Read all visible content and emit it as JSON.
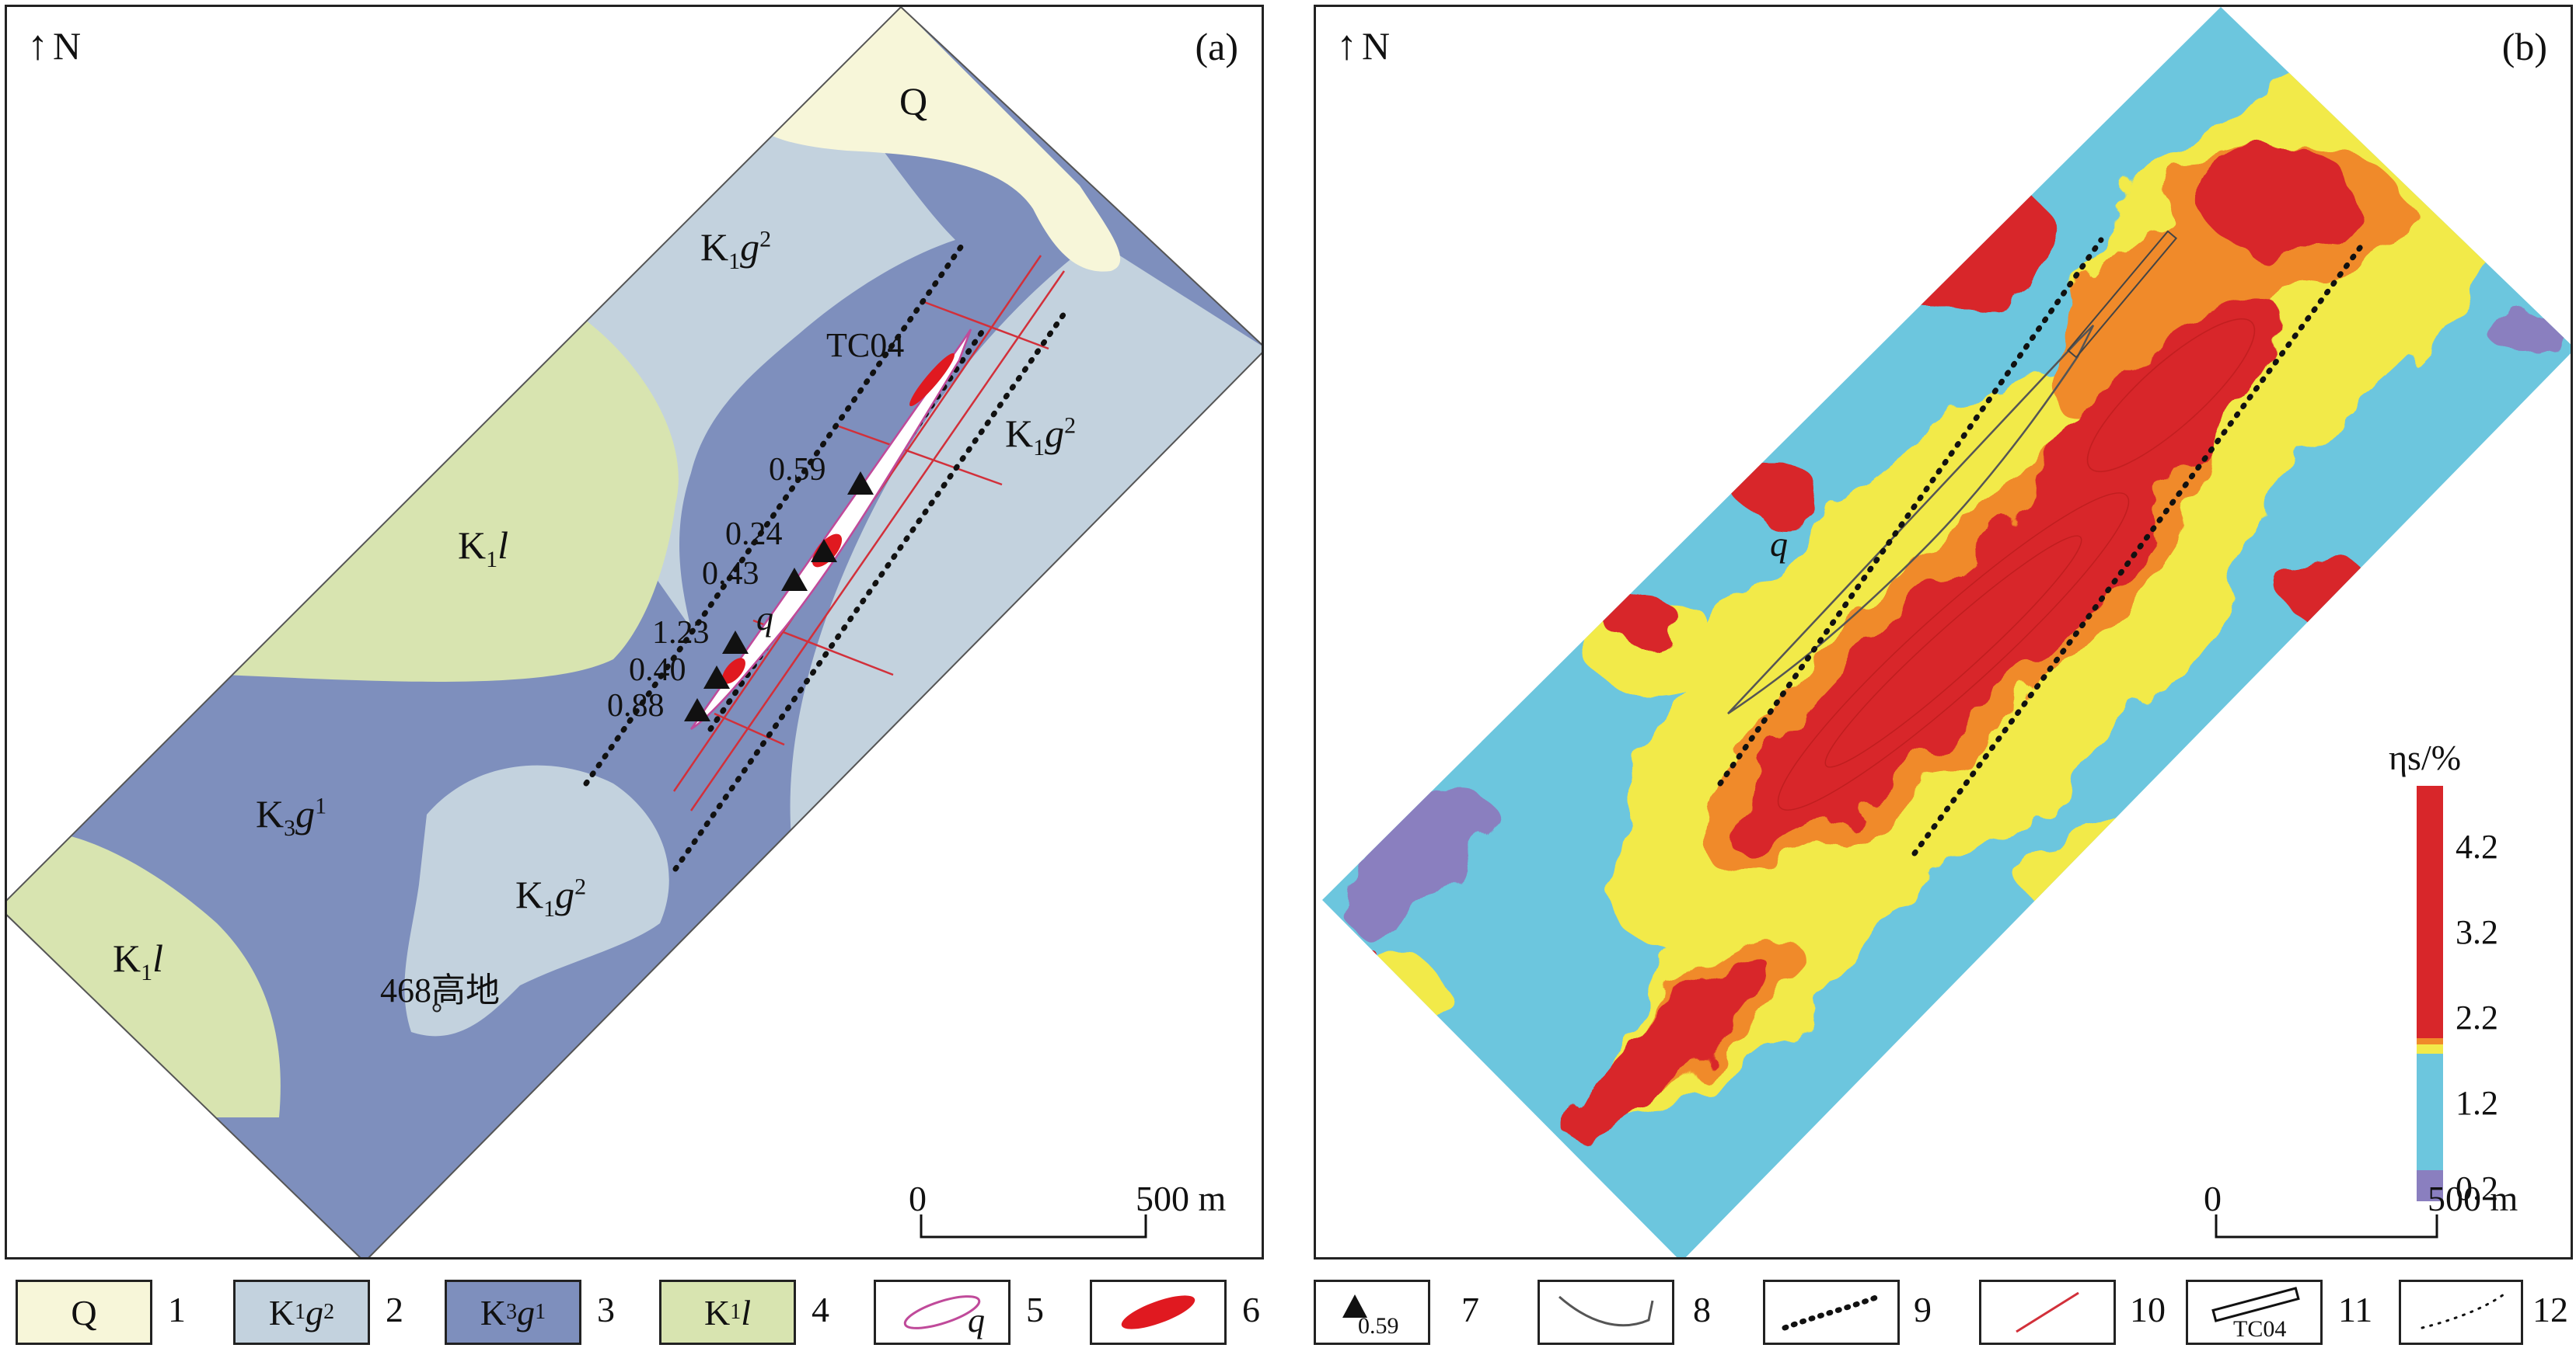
{
  "panel_a": {
    "label": "(a)",
    "north": "N",
    "units": {
      "Q": "Q",
      "K1g2_top": {
        "base": "K",
        "sub": "1",
        "it": "g",
        "sup": "2"
      },
      "K1g2_right": {
        "base": "K",
        "sub": "1",
        "it": "g",
        "sup": "2"
      },
      "K1g2_bottom": {
        "base": "K",
        "sub": "1",
        "it": "g",
        "sup": "2"
      },
      "K1l_center": {
        "base": "K",
        "sub": "1",
        "it": "l"
      },
      "K1l_left": {
        "base": "K",
        "sub": "1",
        "it": "l"
      },
      "K3g1": {
        "base": "K",
        "sub": "3",
        "it": "g",
        "sup": "1"
      }
    },
    "trench": "TC04",
    "q_label": "q",
    "place": "468高地",
    "samples": [
      "0.59",
      "0.24",
      "0.43",
      "1.23",
      "0.40",
      "0.88"
    ],
    "scale": {
      "zero": "0",
      "end": "500 m"
    },
    "colors": {
      "Q": "#f7f6d9",
      "K1g2": "#c3d2de",
      "K3g1": "#7e8fbd",
      "K1l": "#d8e4b0"
    }
  },
  "panel_b": {
    "label": "(b)",
    "north": "N",
    "q_label": "q",
    "colorbar_title": "ηs/%",
    "colorbar_ticks": [
      "4.2",
      "3.2",
      "2.2",
      "1.2",
      "0.2"
    ],
    "scale": {
      "zero": "0",
      "end": "500 m"
    },
    "colors": {
      "high": "#d8262a",
      "mid": "#f08a2a",
      "moderate": "#f2ea4a",
      "low": "#6cc6de",
      "lowest": "#8a7fbf"
    }
  },
  "legend": [
    {
      "num": "1",
      "text": "Q"
    },
    {
      "num": "2",
      "base": "K",
      "sub": "1",
      "it": "g",
      "sup": "2"
    },
    {
      "num": "3",
      "base": "K",
      "sub": "3",
      "it": "g",
      "sup": "1"
    },
    {
      "num": "4",
      "base": "K",
      "sub": "1",
      "it": "l"
    },
    {
      "num": "5",
      "it": "q"
    },
    {
      "num": "6"
    },
    {
      "num": "7",
      "text": "0.59"
    },
    {
      "num": "8"
    },
    {
      "num": "9"
    },
    {
      "num": "10"
    },
    {
      "num": "11",
      "text": "TC04"
    },
    {
      "num": "12"
    }
  ]
}
